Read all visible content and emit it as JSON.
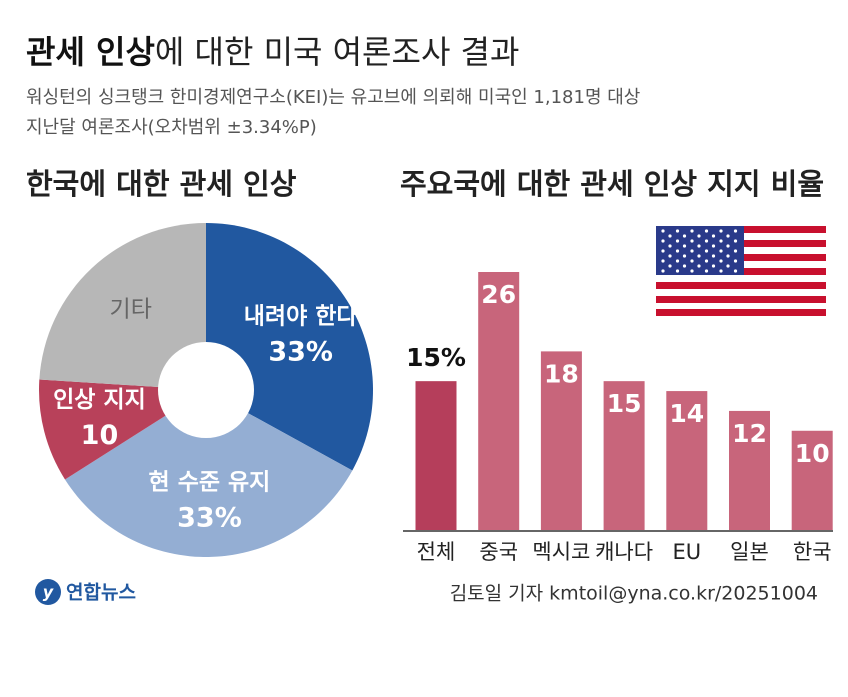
{
  "header": {
    "title_bold": "관세 인상",
    "title_rest": "에 대한 미국 여론조사 결과",
    "subtitle": [
      "워싱턴의 싱크탱크 한미경제연구소(KEI)는 유고브에 의뢰해 미국인 1,181명 대상",
      "지난달 여론조사(오차범위 ±3.34%P)"
    ]
  },
  "chart_data": [
    {
      "type": "pie",
      "title": "한국에 대한 관세 인상",
      "categories": [
        "내려야 한다",
        "현 수준 유지",
        "인상 지지",
        "기타"
      ],
      "values": [
        33,
        33,
        10,
        24
      ],
      "value_labels": [
        "33%",
        "33%",
        "10",
        null
      ],
      "colors": [
        "#2158a0",
        "#94aed3",
        "#b8415a",
        "#b7b7b7"
      ],
      "label_colors": [
        "#ffffff",
        "#ffffff",
        "#ffffff",
        "#666666"
      ]
    },
    {
      "type": "bar",
      "title": "주요국에 대한 관세 인상 지지 비율",
      "categories": [
        "전체",
        "중국",
        "멕시코",
        "캐나다",
        "EU",
        "일본",
        "한국"
      ],
      "values": [
        15,
        26,
        18,
        15,
        14,
        12,
        10
      ],
      "value_labels": [
        "15%",
        "26",
        "18",
        "15",
        "14",
        "12",
        "10"
      ],
      "colors": [
        "#b53e5b",
        "#c8657b",
        "#c8657b",
        "#c8657b",
        "#c8657b",
        "#c8657b",
        "#c8657b"
      ]
    }
  ],
  "footer": {
    "logo": "연합뉴스",
    "credit": "김토일 기자 kmtoil@yna.co.kr/20251004"
  }
}
